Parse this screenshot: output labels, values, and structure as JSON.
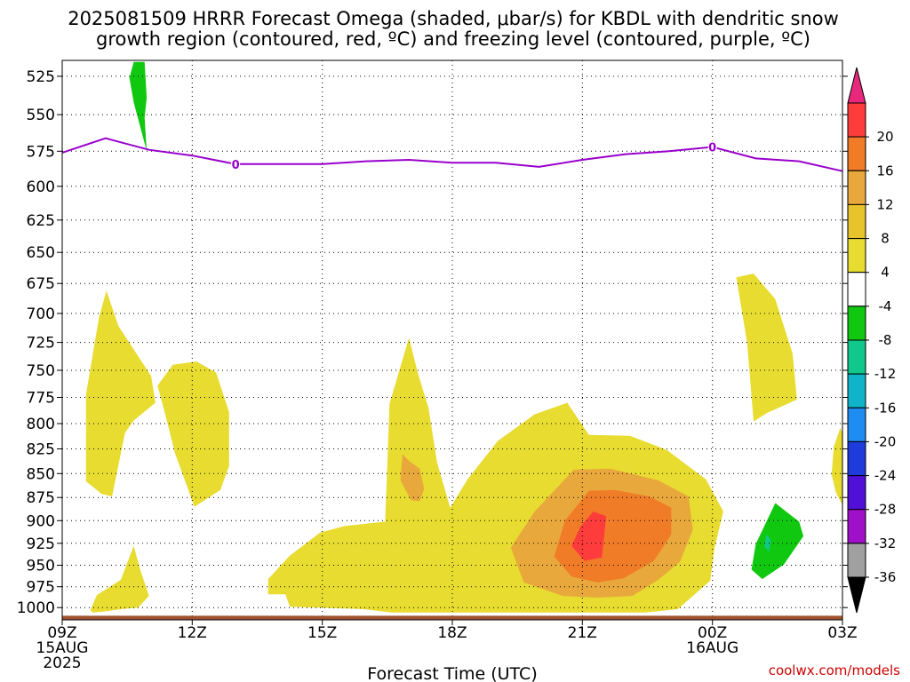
{
  "chart_data": {
    "type": "heatmap",
    "title_line1": "2025081509 HRRR Forecast Omega (shaded, μbar/s) for KBDL with dendritic snow",
    "title_line2": "growth region (contoured, red, ºC) and freezing level (contoured, purple, ºC)",
    "xlabel": "Forecast Time (UTC)",
    "credit": "coolwx.com/models",
    "x_ticks": [
      {
        "hour": 0,
        "label": "09Z",
        "sub1": "15AUG",
        "sub2": "2025"
      },
      {
        "hour": 3,
        "label": "12Z",
        "sub1": "",
        "sub2": ""
      },
      {
        "hour": 6,
        "label": "15Z",
        "sub1": "",
        "sub2": ""
      },
      {
        "hour": 9,
        "label": "18Z",
        "sub1": "",
        "sub2": ""
      },
      {
        "hour": 12,
        "label": "21Z",
        "sub1": "",
        "sub2": ""
      },
      {
        "hour": 15,
        "label": "00Z",
        "sub1": "16AUG",
        "sub2": ""
      },
      {
        "hour": 18,
        "label": "03Z",
        "sub1": "",
        "sub2": ""
      }
    ],
    "xlim": [
      0,
      18
    ],
    "y_ticks": [
      525,
      550,
      575,
      600,
      625,
      650,
      675,
      700,
      725,
      750,
      775,
      800,
      825,
      850,
      875,
      900,
      925,
      950,
      975,
      1000
    ],
    "ylim_hpa": [
      1015,
      515
    ],
    "y_scale": "log-pressure",
    "grid": true,
    "colorbar": {
      "labels": [
        "20",
        "16",
        "12",
        "8",
        "4",
        "-4",
        "-8",
        "-12",
        "-16",
        "-20",
        "-24",
        "-28",
        "-32",
        "-36"
      ],
      "colors": [
        "#e8287c",
        "#ff3c3c",
        "#f07c28",
        "#e8a83c",
        "#e8c42c",
        "#e8dc30",
        "#ffffff",
        "#10c810",
        "#10c88c",
        "#10b4c8",
        "#1e8cf0",
        "#1e3cdc",
        "#5010d8",
        "#a010c8",
        "#a0a0a0",
        "#000000"
      ]
    },
    "freezing_level": {
      "label": "0",
      "label_hours": [
        4,
        15
      ],
      "color": "#9900cc",
      "points": [
        [
          0,
          576
        ],
        [
          1,
          566
        ],
        [
          2,
          574
        ],
        [
          3,
          578
        ],
        [
          4,
          584
        ],
        [
          5,
          584
        ],
        [
          6,
          584
        ],
        [
          7,
          582
        ],
        [
          8,
          581
        ],
        [
          9,
          583
        ],
        [
          10,
          583
        ],
        [
          11,
          586
        ],
        [
          12,
          581
        ],
        [
          13,
          577
        ],
        [
          14,
          575
        ],
        [
          15,
          572
        ],
        [
          16,
          580
        ],
        [
          17,
          582
        ],
        [
          18,
          589
        ]
      ]
    },
    "omega_regions": [
      {
        "level": 4,
        "color": "#e8dc30",
        "points": [
          [
            1.02,
            681
          ],
          [
            1.3,
            711
          ],
          [
            2.05,
            755
          ],
          [
            2.15,
            780
          ],
          [
            1.65,
            797
          ],
          [
            1.45,
            809
          ],
          [
            1.15,
            874
          ],
          [
            0.9,
            871
          ],
          [
            0.55,
            858
          ],
          [
            0.55,
            772
          ],
          [
            0.85,
            703
          ]
        ]
      },
      {
        "level": 4,
        "color": "#e8dc30",
        "points": [
          [
            2.2,
            764
          ],
          [
            2.55,
            745
          ],
          [
            3.1,
            742
          ],
          [
            3.55,
            752
          ],
          [
            3.85,
            789
          ],
          [
            3.85,
            842
          ],
          [
            3.65,
            867
          ],
          [
            3.05,
            885
          ],
          [
            2.6,
            829
          ],
          [
            2.4,
            795
          ]
        ]
      },
      {
        "level": 4,
        "color": "#e8dc30",
        "points": [
          [
            0.65,
            1003
          ],
          [
            0.8,
            985
          ],
          [
            1.35,
            967
          ],
          [
            1.65,
            928
          ],
          [
            1.8,
            955
          ],
          [
            2.0,
            986
          ],
          [
            1.75,
            1000
          ],
          [
            1.35,
            1002
          ],
          [
            0.95,
            1005
          ],
          [
            0.7,
            1006
          ]
        ]
      },
      {
        "level": 4,
        "color": "#e8dc30",
        "points": [
          [
            8.0,
            721
          ],
          [
            8.2,
            752
          ],
          [
            8.45,
            785
          ],
          [
            8.65,
            839
          ],
          [
            8.95,
            886
          ],
          [
            9.35,
            856
          ],
          [
            10.05,
            817
          ],
          [
            10.9,
            791
          ],
          [
            11.65,
            780
          ],
          [
            12.15,
            811
          ],
          [
            13.1,
            812
          ],
          [
            13.95,
            826
          ],
          [
            14.85,
            856
          ],
          [
            15.25,
            890
          ],
          [
            15.05,
            930
          ],
          [
            14.95,
            968
          ],
          [
            14.2,
            1002
          ],
          [
            13.45,
            1006
          ],
          [
            11.35,
            1006
          ],
          [
            9.65,
            1006
          ],
          [
            7.6,
            1006
          ],
          [
            6.95,
            1002
          ],
          [
            5.25,
            999
          ],
          [
            5.15,
            984
          ],
          [
            4.75,
            984
          ],
          [
            4.75,
            966
          ],
          [
            5.25,
            939
          ],
          [
            5.95,
            913
          ],
          [
            6.5,
            906
          ],
          [
            7.45,
            901
          ],
          [
            7.5,
            842
          ],
          [
            7.55,
            781
          ]
        ]
      },
      {
        "level": 8,
        "color": "#e8a83c",
        "points": [
          [
            8.0,
            837
          ],
          [
            8.25,
            845
          ],
          [
            8.35,
            866
          ],
          [
            8.25,
            879
          ],
          [
            8.05,
            878
          ],
          [
            7.8,
            857
          ],
          [
            7.85,
            830
          ]
        ]
      },
      {
        "level": 8,
        "color": "#e8a83c",
        "points": [
          [
            10.9,
            890
          ],
          [
            11.8,
            846
          ],
          [
            12.65,
            845
          ],
          [
            13.75,
            857
          ],
          [
            14.45,
            874
          ],
          [
            14.55,
            910
          ],
          [
            14.25,
            946
          ],
          [
            13.75,
            967
          ],
          [
            13.15,
            986
          ],
          [
            12.35,
            988
          ],
          [
            11.55,
            986
          ],
          [
            10.65,
            970
          ],
          [
            10.35,
            930
          ]
        ]
      },
      {
        "level": 12,
        "color": "#f07c28",
        "points": [
          [
            11.6,
            900
          ],
          [
            12.15,
            868
          ],
          [
            12.75,
            867
          ],
          [
            13.55,
            874
          ],
          [
            14.05,
            886
          ],
          [
            14.05,
            915
          ],
          [
            13.65,
            945
          ],
          [
            12.95,
            965
          ],
          [
            12.35,
            970
          ],
          [
            11.75,
            963
          ],
          [
            11.35,
            940
          ]
        ]
      },
      {
        "level": 16,
        "color": "#ff3c3c",
        "points": [
          [
            11.95,
            907
          ],
          [
            12.25,
            890
          ],
          [
            12.55,
            895
          ],
          [
            12.5,
            918
          ],
          [
            12.45,
            941
          ],
          [
            12.05,
            945
          ],
          [
            11.75,
            928
          ]
        ]
      },
      {
        "level": 4,
        "color": "#e8dc30",
        "points": [
          [
            15.55,
            670
          ],
          [
            15.95,
            667
          ],
          [
            16.45,
            688
          ],
          [
            16.85,
            735
          ],
          [
            16.95,
            777
          ],
          [
            16.25,
            790
          ],
          [
            15.95,
            798
          ],
          [
            15.8,
            725
          ]
        ]
      },
      {
        "level": 4,
        "color": "#e8dc30",
        "points": [
          [
            17.95,
            804
          ],
          [
            18.0,
            809
          ],
          [
            18.0,
            883
          ],
          [
            17.85,
            870
          ],
          [
            17.75,
            851
          ],
          [
            17.8,
            823
          ]
        ]
      },
      {
        "level": -4,
        "color": "#10c810",
        "points": [
          [
            16.0,
            926
          ],
          [
            16.45,
            881
          ],
          [
            17.0,
            901
          ],
          [
            17.1,
            917
          ],
          [
            16.65,
            949
          ],
          [
            16.15,
            966
          ],
          [
            15.9,
            955
          ]
        ]
      },
      {
        "level": -8,
        "color": "#10c88c",
        "points": [
          [
            16.25,
            915
          ],
          [
            16.35,
            922
          ],
          [
            16.3,
            935
          ],
          [
            16.2,
            928
          ]
        ]
      },
      {
        "level": -4,
        "color": "#10c810",
        "points": [
          [
            1.65,
            516
          ],
          [
            1.9,
            516
          ],
          [
            1.95,
            539
          ],
          [
            1.9,
            552
          ],
          [
            1.95,
            575
          ],
          [
            1.65,
            542
          ],
          [
            1.55,
            526
          ]
        ]
      }
    ],
    "ground": {
      "color": "#a0522d",
      "top_hpa": 1010
    }
  }
}
